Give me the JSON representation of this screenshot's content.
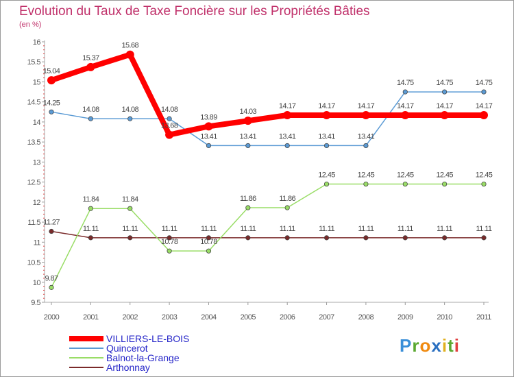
{
  "chart_data": {
    "type": "line",
    "title": "Evolution du Taux de Taxe Foncière sur les Propriétés Bâties",
    "subtitle": "(en %)",
    "xlabel": "",
    "ylabel": "",
    "x": [
      "2000",
      "2001",
      "2002",
      "2003",
      "2004",
      "2005",
      "2006",
      "2007",
      "2008",
      "2009",
      "2010",
      "2011"
    ],
    "yticks": [
      "9.5",
      "10",
      "10.5",
      "11",
      "11.5",
      "12",
      "12.5",
      "13",
      "13.5",
      "14",
      "14.5",
      "15",
      "15.5",
      "16"
    ],
    "ylim": [
      9.5,
      16
    ],
    "grid": false,
    "legend_position": "bottom-left",
    "series": [
      {
        "name": "VILLIERS-LE-BOIS",
        "color": "#ff0000",
        "values": [
          15.04,
          15.37,
          15.68,
          13.68,
          13.89,
          14.03,
          14.17,
          14.17,
          14.17,
          14.17,
          14.17,
          14.17
        ],
        "labels": [
          "15.04",
          "15.37",
          "15.68",
          "13.68",
          "13.89",
          "14.03",
          "14.17",
          "14.17",
          "14.17",
          "14.17",
          "14.17",
          "14.17"
        ]
      },
      {
        "name": "Quincerot",
        "color": "#5b9bd5",
        "values": [
          14.25,
          14.08,
          14.08,
          14.08,
          13.41,
          13.41,
          13.41,
          13.41,
          13.41,
          14.75,
          14.75,
          14.75
        ],
        "labels": [
          "14.25",
          "14.08",
          "14.08",
          "14.08",
          "13.41",
          "13.41",
          "13.41",
          "13.41",
          "13.41",
          "14.75",
          "14.75",
          "14.75"
        ]
      },
      {
        "name": "Balnot-la-Grange",
        "color": "#99dd66",
        "values": [
          9.87,
          11.84,
          11.84,
          10.78,
          10.78,
          11.86,
          11.86,
          12.45,
          12.45,
          12.45,
          12.45,
          12.45
        ],
        "labels": [
          "9.87",
          "11.84",
          "11.84",
          "10.78",
          "10.78",
          "11.86",
          "11.86",
          "12.45",
          "12.45",
          "12.45",
          "12.45",
          "12.45"
        ]
      },
      {
        "name": "Arthonnay",
        "color": "#7a2a2a",
        "values": [
          11.27,
          11.11,
          11.11,
          11.11,
          11.11,
          11.11,
          11.11,
          11.11,
          11.11,
          11.11,
          11.11,
          11.11
        ],
        "labels": [
          "11.27",
          "11.11",
          "11.11",
          "11.11",
          "11.11",
          "11.11",
          "11.11",
          "11.11",
          "11.11",
          "11.11",
          "11.11",
          "11.11"
        ]
      }
    ]
  },
  "watermark": {
    "letters": [
      "P",
      "r",
      "o",
      "x",
      "i",
      "t",
      "i"
    ],
    "colors": [
      "#3a8fd8",
      "#5aa830",
      "#f08a10",
      "#2a6fc0",
      "#e0b020",
      "#5aa830",
      "#e04040"
    ]
  }
}
